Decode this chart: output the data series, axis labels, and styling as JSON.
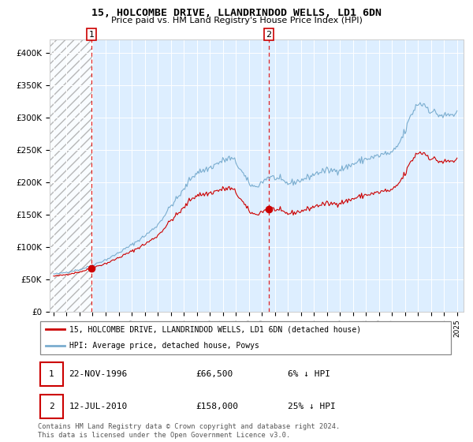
{
  "title": "15, HOLCOMBE DRIVE, LLANDRINDOD WELLS, LD1 6DN",
  "subtitle": "Price paid vs. HM Land Registry's House Price Index (HPI)",
  "ylim": [
    0,
    420000
  ],
  "yticks": [
    0,
    50000,
    100000,
    150000,
    200000,
    250000,
    300000,
    350000,
    400000
  ],
  "ytick_labels": [
    "£0",
    "£50K",
    "£100K",
    "£150K",
    "£200K",
    "£250K",
    "£300K",
    "£350K",
    "£400K"
  ],
  "xlim_start": 1993.7,
  "xlim_end": 2025.5,
  "sale1_year": 1996.9,
  "sale1_price": 66500,
  "sale1_label": "22-NOV-1996",
  "sale1_amount": "£66,500",
  "sale1_hpi": "6% ↓ HPI",
  "sale2_year": 2010.54,
  "sale2_price": 158000,
  "sale2_label": "12-JUL-2010",
  "sale2_amount": "£158,000",
  "sale2_hpi": "25% ↓ HPI",
  "line_color_red": "#cc0000",
  "line_color_blue": "#7aadcf",
  "bg_color": "#ddeeff",
  "legend_label_red": "15, HOLCOMBE DRIVE, LLANDRINDOD WELLS, LD1 6DN (detached house)",
  "legend_label_blue": "HPI: Average price, detached house, Powys",
  "footnote": "Contains HM Land Registry data © Crown copyright and database right 2024.\nThis data is licensed under the Open Government Licence v3.0.",
  "hatch_end": 1997.0
}
